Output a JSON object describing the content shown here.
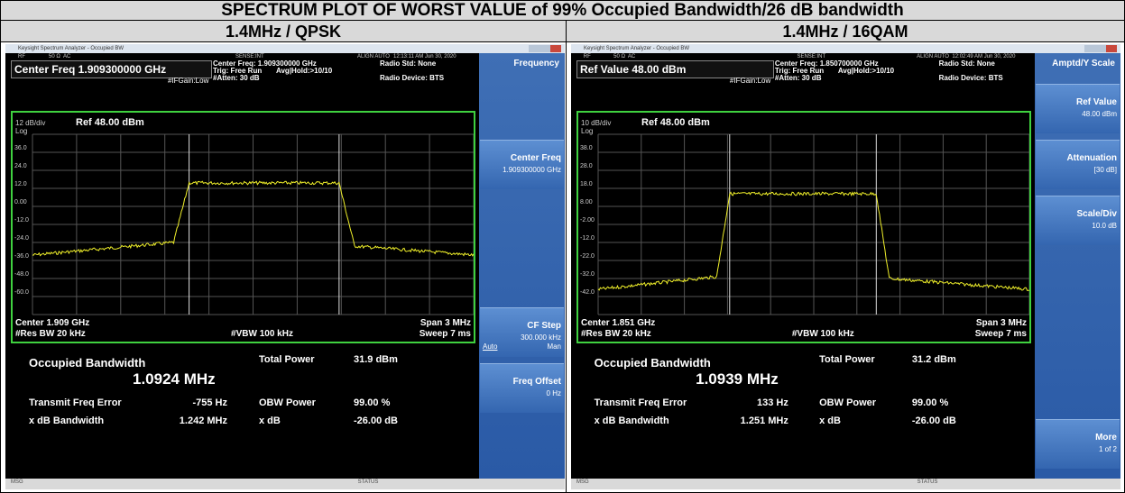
{
  "title": "SPECTRUM PLOT OF WORST VALUE of 99% Occupied Bandwidth/26 dB bandwidth",
  "panels": [
    {
      "heading": "1.4MHz / QPSK",
      "window_title": "Keysight Spectrum Analyzer - Occupied BW",
      "status_fields": [
        "RF",
        "50 Ω",
        "AC",
        "SENSE:INT",
        "ALIGN AUTO",
        "12:13:11 AM Jun 30, 2020"
      ],
      "active_function": "Center Freq 1.909300000 GHz",
      "setup": [
        "Center Freq: 1.909300000 GHz",
        "Trig: Free Run",
        "Avg|Hold:>10/10",
        "#Atten: 30 dB"
      ],
      "if_gain": "#IFGain:Low",
      "radio": [
        "Radio Std: None",
        "Radio Device: BTS"
      ],
      "scale": "12 dB/div",
      "ref": "Ref 48.00 dBm",
      "log": "Log",
      "y_labels": [
        "36.0",
        "24.0",
        "12.0",
        "0.00",
        "-12.0",
        "-24.0",
        "-36.0",
        "-48.0",
        "-60.0"
      ],
      "center": "Center 1.909 GHz",
      "rbw": "#Res BW 20 kHz",
      "vbw": "#VBW 100 kHz",
      "span": "Span 3 MHz",
      "sweep": "Sweep 7 ms",
      "occupied_bandwidth": {
        "label": "Occupied Bandwidth",
        "value": "1.0924 MHz"
      },
      "total_power": {
        "label": "Total Power",
        "value": "31.9 dBm"
      },
      "transmit_freq_error": {
        "label": "Transmit Freq Error",
        "value": "-755 Hz"
      },
      "obw_power": {
        "label": "OBW Power",
        "value": "99.00 %"
      },
      "xdb_bandwidth": {
        "label": "x dB Bandwidth",
        "value": "1.242 MHz"
      },
      "xdb": {
        "label": "x dB",
        "value": "-26.00 dB"
      },
      "menu_title": "Frequency",
      "softkeys": [
        null,
        {
          "label": "Center Freq",
          "value": "1.909300000 GHz"
        },
        null,
        null,
        {
          "label": "CF Step",
          "value": "300.000 kHz",
          "options": [
            "Auto",
            "Man"
          ]
        },
        {
          "label": "Freq Offset",
          "value": "0 Hz"
        },
        null
      ],
      "msg": "MSG",
      "status": "STATUS"
    },
    {
      "heading": "1.4MHz / 16QAM",
      "window_title": "Keysight Spectrum Analyzer - Occupied BW",
      "status_fields": [
        "RF",
        "50 Ω",
        "AC",
        "SENSE:INT",
        "ALIGN AUTO",
        "12:02:49 AM Jun 30, 2020"
      ],
      "active_function": "Ref Value 48.00 dBm",
      "setup": [
        "Center Freq: 1.850700000 GHz",
        "Trig: Free Run",
        "Avg|Hold:>10/10",
        "#Atten: 30 dB"
      ],
      "if_gain": "#IFGain:Low",
      "radio": [
        "Radio Std: None",
        "Radio Device: BTS"
      ],
      "scale": "10 dB/div",
      "ref": "Ref 48.00 dBm",
      "log": "Log",
      "y_labels": [
        "38.0",
        "28.0",
        "18.0",
        "8.00",
        "-2.00",
        "-12.0",
        "-22.0",
        "-32.0",
        "-42.0"
      ],
      "center": "Center 1.851 GHz",
      "rbw": "#Res BW 20 kHz",
      "vbw": "#VBW 100 kHz",
      "span": "Span 3 MHz",
      "sweep": "Sweep 7 ms",
      "occupied_bandwidth": {
        "label": "Occupied Bandwidth",
        "value": "1.0939 MHz"
      },
      "total_power": {
        "label": "Total Power",
        "value": "31.2 dBm"
      },
      "transmit_freq_error": {
        "label": "Transmit Freq Error",
        "value": "133 Hz"
      },
      "obw_power": {
        "label": "OBW Power",
        "value": "99.00 %"
      },
      "xdb_bandwidth": {
        "label": "x dB Bandwidth",
        "value": "1.251 MHz"
      },
      "xdb": {
        "label": "x dB",
        "value": "-26.00 dB"
      },
      "menu_title": "Amptd/Y Scale",
      "softkeys": [
        {
          "label": "Ref Value",
          "value": "48.00 dBm"
        },
        {
          "label": "Attenuation",
          "value": "[30 dB]"
        },
        {
          "label": "Scale/Div",
          "value": "10.0 dB"
        },
        null,
        null,
        null,
        {
          "label": "More",
          "value": "1 of 2"
        }
      ],
      "msg": "MSG",
      "status": "STATUS"
    }
  ]
}
